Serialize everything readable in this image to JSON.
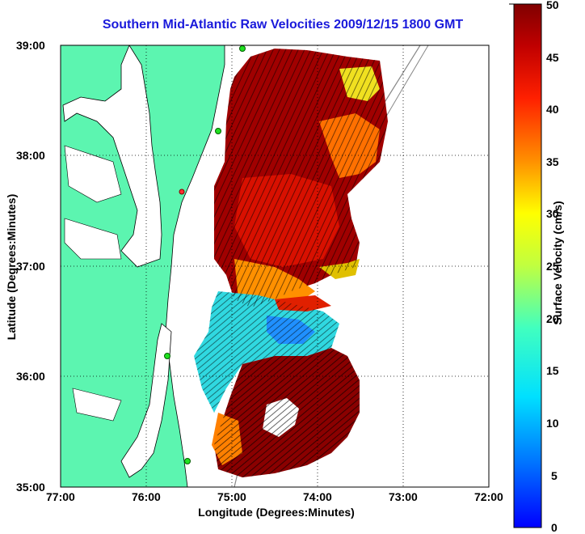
{
  "title": "Southern Mid-Atlantic Raw Velocities 2009/12/15 1800 GMT",
  "x_axis": {
    "label": "Longitude (Degrees:Minutes)",
    "ticks": [
      "77:00",
      "76:00",
      "75:00",
      "74:00",
      "73:00",
      "72:00"
    ]
  },
  "y_axis": {
    "label": "Latitude (Degrees:Minutes)",
    "ticks": [
      "39:00",
      "38:00",
      "37:00",
      "36:00",
      "35:00"
    ]
  },
  "colorbar": {
    "label": "Surface Velocity (cm/s)",
    "ticks": [
      "0",
      "5",
      "10",
      "15",
      "20",
      "25",
      "30",
      "35",
      "40",
      "45",
      "50"
    ],
    "min": 0,
    "max": 50
  },
  "colors": {
    "land": "#5cf5b0",
    "title": "#1a1adb"
  }
}
